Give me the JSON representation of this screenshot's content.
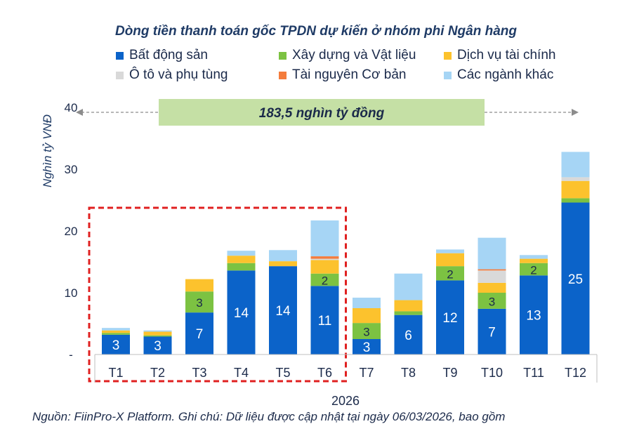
{
  "chart_data": {
    "type": "bar",
    "stacked": true,
    "title": "Dòng tiền thanh toán gốc TPDN dự kiến ở nhóm phi Ngân hàng",
    "ylabel": "Nghìn tỷ VNĐ",
    "xlabel": "2026",
    "ylim": [
      0,
      40
    ],
    "yticks": [
      "-",
      "10",
      "20",
      "30",
      "40"
    ],
    "grid": false,
    "legend_position": "top",
    "categories": [
      "T1",
      "T2",
      "T3",
      "T4",
      "T5",
      "T6",
      "T7",
      "T8",
      "T9",
      "T10",
      "T11",
      "T12"
    ],
    "series": [
      {
        "name": "Bất động sản",
        "color": "#0b63c9",
        "values": [
          3.2,
          2.9,
          6.8,
          13.6,
          14.3,
          11.1,
          2.5,
          6.4,
          12.0,
          7.4,
          12.8,
          24.6
        ]
      },
      {
        "name": "Xây dựng và Vật liệu",
        "color": "#7cc242",
        "values": [
          0.3,
          0.2,
          3.4,
          1.2,
          0.0,
          2.0,
          2.6,
          0.6,
          2.3,
          2.6,
          2.0,
          0.7
        ]
      },
      {
        "name": "Dịch vụ tài chính",
        "color": "#fcc22d",
        "values": [
          0.4,
          0.6,
          2.0,
          1.2,
          0.8,
          2.2,
          2.4,
          1.8,
          2.1,
          1.6,
          0.7,
          2.8
        ]
      },
      {
        "name": "Ô tô và phụ tùng",
        "color": "#d9d9d9",
        "values": [
          0.0,
          0.0,
          0.0,
          0.0,
          0.0,
          0.2,
          0.0,
          0.0,
          0.0,
          2.0,
          0.0,
          0.6
        ]
      },
      {
        "name": "Tài nguyên Cơ bản",
        "color": "#f47c3c",
        "values": [
          0.0,
          0.0,
          0.0,
          0.0,
          0.0,
          0.4,
          0.0,
          0.0,
          0.0,
          0.2,
          0.0,
          0.0
        ]
      },
      {
        "name": "Các ngành khác",
        "color": "#a6d5f5",
        "values": [
          0.4,
          0.2,
          0.0,
          0.8,
          1.8,
          5.8,
          1.7,
          4.3,
          0.6,
          5.1,
          0.6,
          4.1
        ]
      }
    ],
    "segment_labels": [
      {
        "series": 0,
        "labels": [
          "3",
          "3",
          "7",
          "14",
          "14",
          "11",
          "3",
          "6",
          "12",
          "7",
          "13",
          "25"
        ]
      },
      {
        "series": 1,
        "labels": [
          "",
          "",
          "3",
          "",
          "",
          "2",
          "3",
          "",
          "2",
          "3",
          "2",
          ""
        ]
      }
    ],
    "annotation": {
      "text": "183,5 nghìn tỷ đồng",
      "color": "#c5e0a5"
    },
    "highlight": {
      "from_category": "T1",
      "to_category": "T6",
      "color": "#e02020"
    }
  },
  "source_note": "Nguồn: FiinPro-X Platform. Ghi chú: Dữ liệu được cập nhật tại ngày 06/03/2026, bao gồm"
}
